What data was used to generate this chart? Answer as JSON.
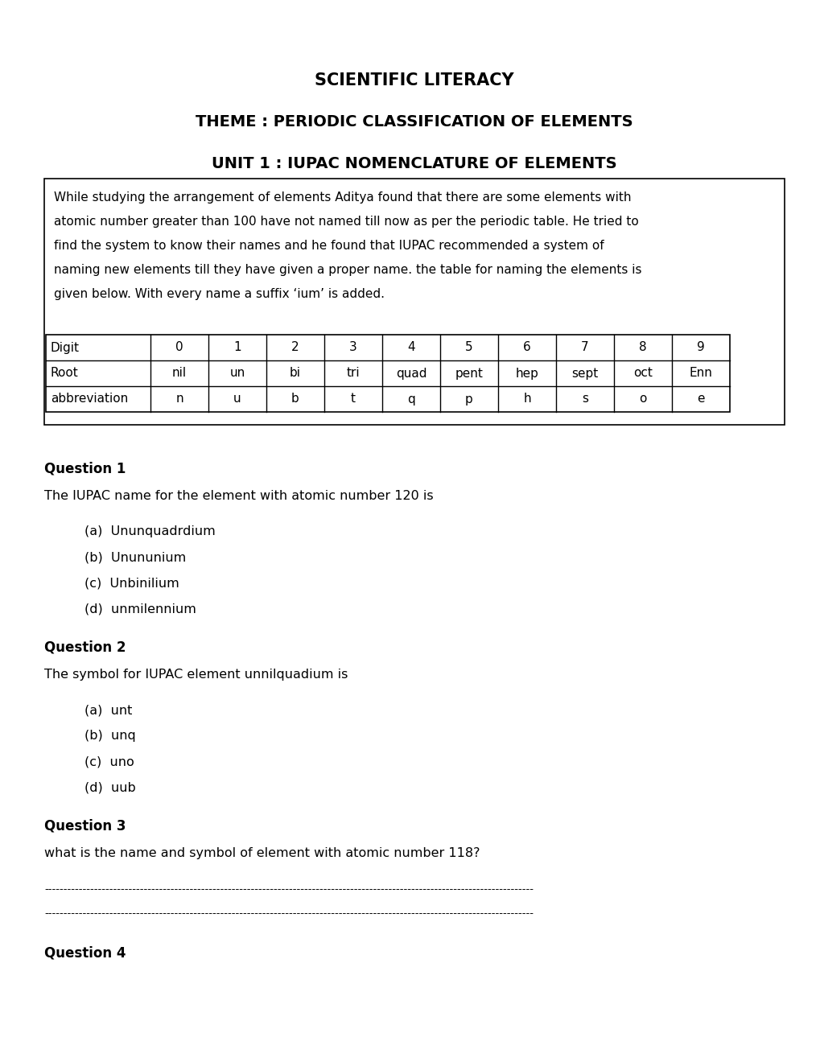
{
  "title1": "SCIENTIFIC LITERACY",
  "title2": "THEME : PERIODIC CLASSIFICATION OF ELEMENTS",
  "title3": "UNIT 1 : IUPAC NOMENCLATURE OF ELEMENTS",
  "paragraph": "While studying the arrangement of elements Aditya found that there are some elements with\natomic number greater than 100 have not named till now as per the periodic table. He tried to\nfind the system to know their names and he found that IUPAC recommended a system of\nnaming new elements till they have given a proper name. the table for naming the elements is\ngiven below. With every name a suffix ‘ium’ is added.",
  "table_headers": [
    "Digit",
    "0",
    "1",
    "2",
    "3",
    "4",
    "5",
    "6",
    "7",
    "8",
    "9"
  ],
  "table_row1": [
    "Root",
    "nil",
    "un",
    "bi",
    "tri",
    "quad",
    "pent",
    "hep",
    "sept",
    "oct",
    "Enn"
  ],
  "table_row2": [
    "abbreviation",
    "n",
    "u",
    "b",
    "t",
    "q",
    "p",
    "h",
    "s",
    "o",
    "e"
  ],
  "q1_label": "Question 1",
  "q1_text": "The IUPAC name for the element with atomic number 120 is",
  "q1_options": [
    "(a)  Ununquadrdium",
    "(b)  Unununium",
    "(c)  Unbinilium",
    "(d)  unmilennium"
  ],
  "q2_label": "Question 2",
  "q2_text": "The symbol for IUPAC element unnilquadium is",
  "q2_options": [
    "(a)  unt",
    "(b)  unq",
    "(c)  uno",
    "(d)  uub"
  ],
  "q3_label": "Question 3",
  "q3_text": "what is the name and symbol of element with atomic number 118?",
  "q4_label": "Question 4",
  "bg_color": "#ffffff",
  "text_color": "#000000",
  "border_color": "#000000"
}
